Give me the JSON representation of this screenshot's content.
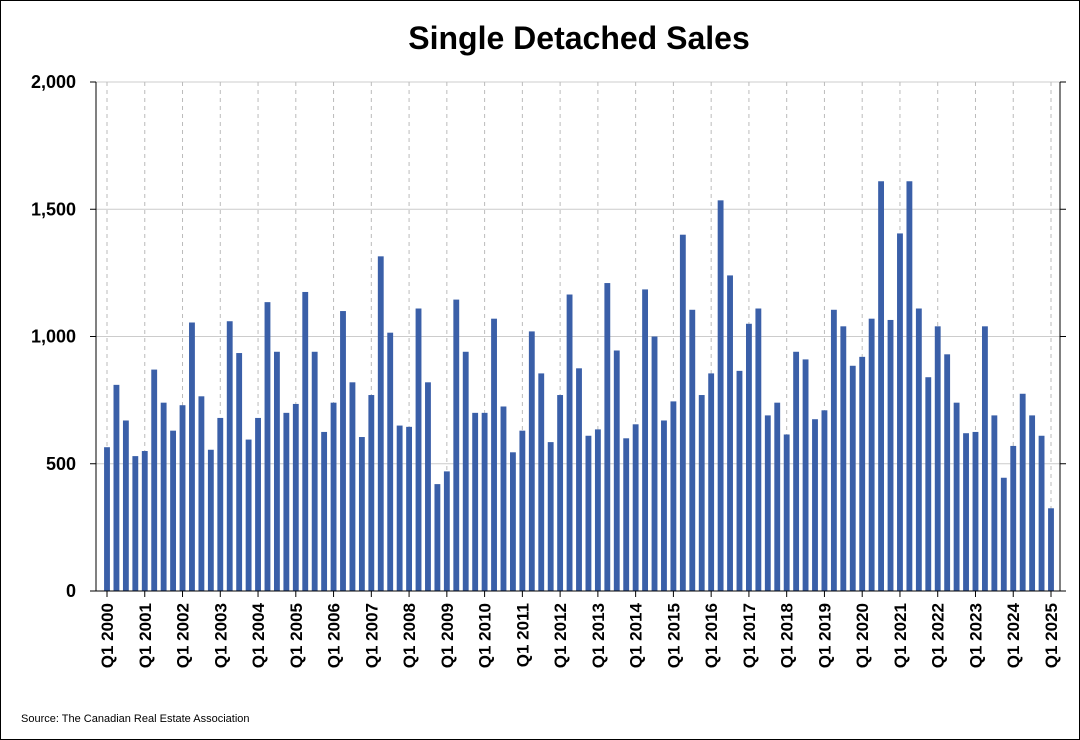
{
  "chart_data": {
    "type": "bar",
    "title": "Single Detached Sales",
    "xlabel": "",
    "ylabel": "",
    "ylim": [
      0,
      2000
    ],
    "yticks": [
      0,
      500,
      1000,
      1500,
      2000
    ],
    "ytick_labels": [
      "0",
      "500",
      "1,000",
      "1,500",
      "2,000"
    ],
    "xtick_labels": [
      "Q1 2000",
      "Q1 2001",
      "Q1 2002",
      "Q1 2003",
      "Q1 2004",
      "Q1 2005",
      "Q1 2006",
      "Q1 2007",
      "Q1 2008",
      "Q1 2009",
      "Q1 2010",
      "Q1 2011",
      "Q1 2012",
      "Q1 2013",
      "Q1 2014",
      "Q1 2015",
      "Q1 2016",
      "Q1 2017",
      "Q1 2018",
      "Q1 2019",
      "Q1 2020",
      "Q1 2021",
      "Q1 2022",
      "Q1 2023",
      "Q1 2024",
      "Q1 2025"
    ],
    "grid": {
      "horizontal": true,
      "vertical": true
    },
    "bar_color": "#3a5fa8",
    "categories": [
      "Q1 2000",
      "Q2 2000",
      "Q3 2000",
      "Q4 2000",
      "Q1 2001",
      "Q2 2001",
      "Q3 2001",
      "Q4 2001",
      "Q1 2002",
      "Q2 2002",
      "Q3 2002",
      "Q4 2002",
      "Q1 2003",
      "Q2 2003",
      "Q3 2003",
      "Q4 2003",
      "Q1 2004",
      "Q2 2004",
      "Q3 2004",
      "Q4 2004",
      "Q1 2005",
      "Q2 2005",
      "Q3 2005",
      "Q4 2005",
      "Q1 2006",
      "Q2 2006",
      "Q3 2006",
      "Q4 2006",
      "Q1 2007",
      "Q2 2007",
      "Q3 2007",
      "Q4 2007",
      "Q1 2008",
      "Q2 2008",
      "Q3 2008",
      "Q4 2008",
      "Q1 2009",
      "Q2 2009",
      "Q3 2009",
      "Q4 2009",
      "Q1 2010",
      "Q2 2010",
      "Q3 2010",
      "Q4 2010",
      "Q1 2011",
      "Q2 2011",
      "Q3 2011",
      "Q4 2011",
      "Q1 2012",
      "Q2 2012",
      "Q3 2012",
      "Q4 2012",
      "Q1 2013",
      "Q2 2013",
      "Q3 2013",
      "Q4 2013",
      "Q1 2014",
      "Q2 2014",
      "Q3 2014",
      "Q4 2014",
      "Q1 2015",
      "Q2 2015",
      "Q3 2015",
      "Q4 2015",
      "Q1 2016",
      "Q2 2016",
      "Q3 2016",
      "Q4 2016",
      "Q1 2017",
      "Q2 2017",
      "Q3 2017",
      "Q4 2017",
      "Q1 2018",
      "Q2 2018",
      "Q3 2018",
      "Q4 2018",
      "Q1 2019",
      "Q2 2019",
      "Q3 2019",
      "Q4 2019",
      "Q1 2020",
      "Q2 2020",
      "Q3 2020",
      "Q4 2020",
      "Q1 2021",
      "Q2 2021",
      "Q3 2021",
      "Q4 2021",
      "Q1 2022",
      "Q2 2022",
      "Q3 2022",
      "Q4 2022",
      "Q1 2023",
      "Q2 2023",
      "Q3 2023",
      "Q4 2023",
      "Q1 2024",
      "Q2 2024",
      "Q3 2024",
      "Q4 2024",
      "Q1 2025"
    ],
    "values": [
      565,
      810,
      670,
      530,
      550,
      870,
      740,
      630,
      730,
      1055,
      765,
      555,
      680,
      1060,
      935,
      595,
      680,
      1135,
      940,
      700,
      735,
      1175,
      940,
      625,
      740,
      1100,
      820,
      605,
      770,
      1315,
      1015,
      650,
      645,
      1110,
      820,
      420,
      470,
      1145,
      940,
      700,
      700,
      1070,
      725,
      545,
      630,
      1020,
      855,
      585,
      770,
      1165,
      875,
      610,
      635,
      1210,
      945,
      600,
      655,
      1185,
      1000,
      670,
      745,
      1400,
      1105,
      770,
      855,
      1535,
      1240,
      865,
      1050,
      1110,
      690,
      740,
      615,
      940,
      910,
      675,
      710,
      1105,
      1040,
      885,
      920,
      1070,
      1610,
      1065,
      1405,
      1610,
      1110,
      840,
      1040,
      930,
      740,
      620,
      625,
      1040,
      690,
      445,
      570,
      775,
      690,
      610,
      325
    ]
  },
  "source_note": "Source: The Canadian Real Estate Association"
}
